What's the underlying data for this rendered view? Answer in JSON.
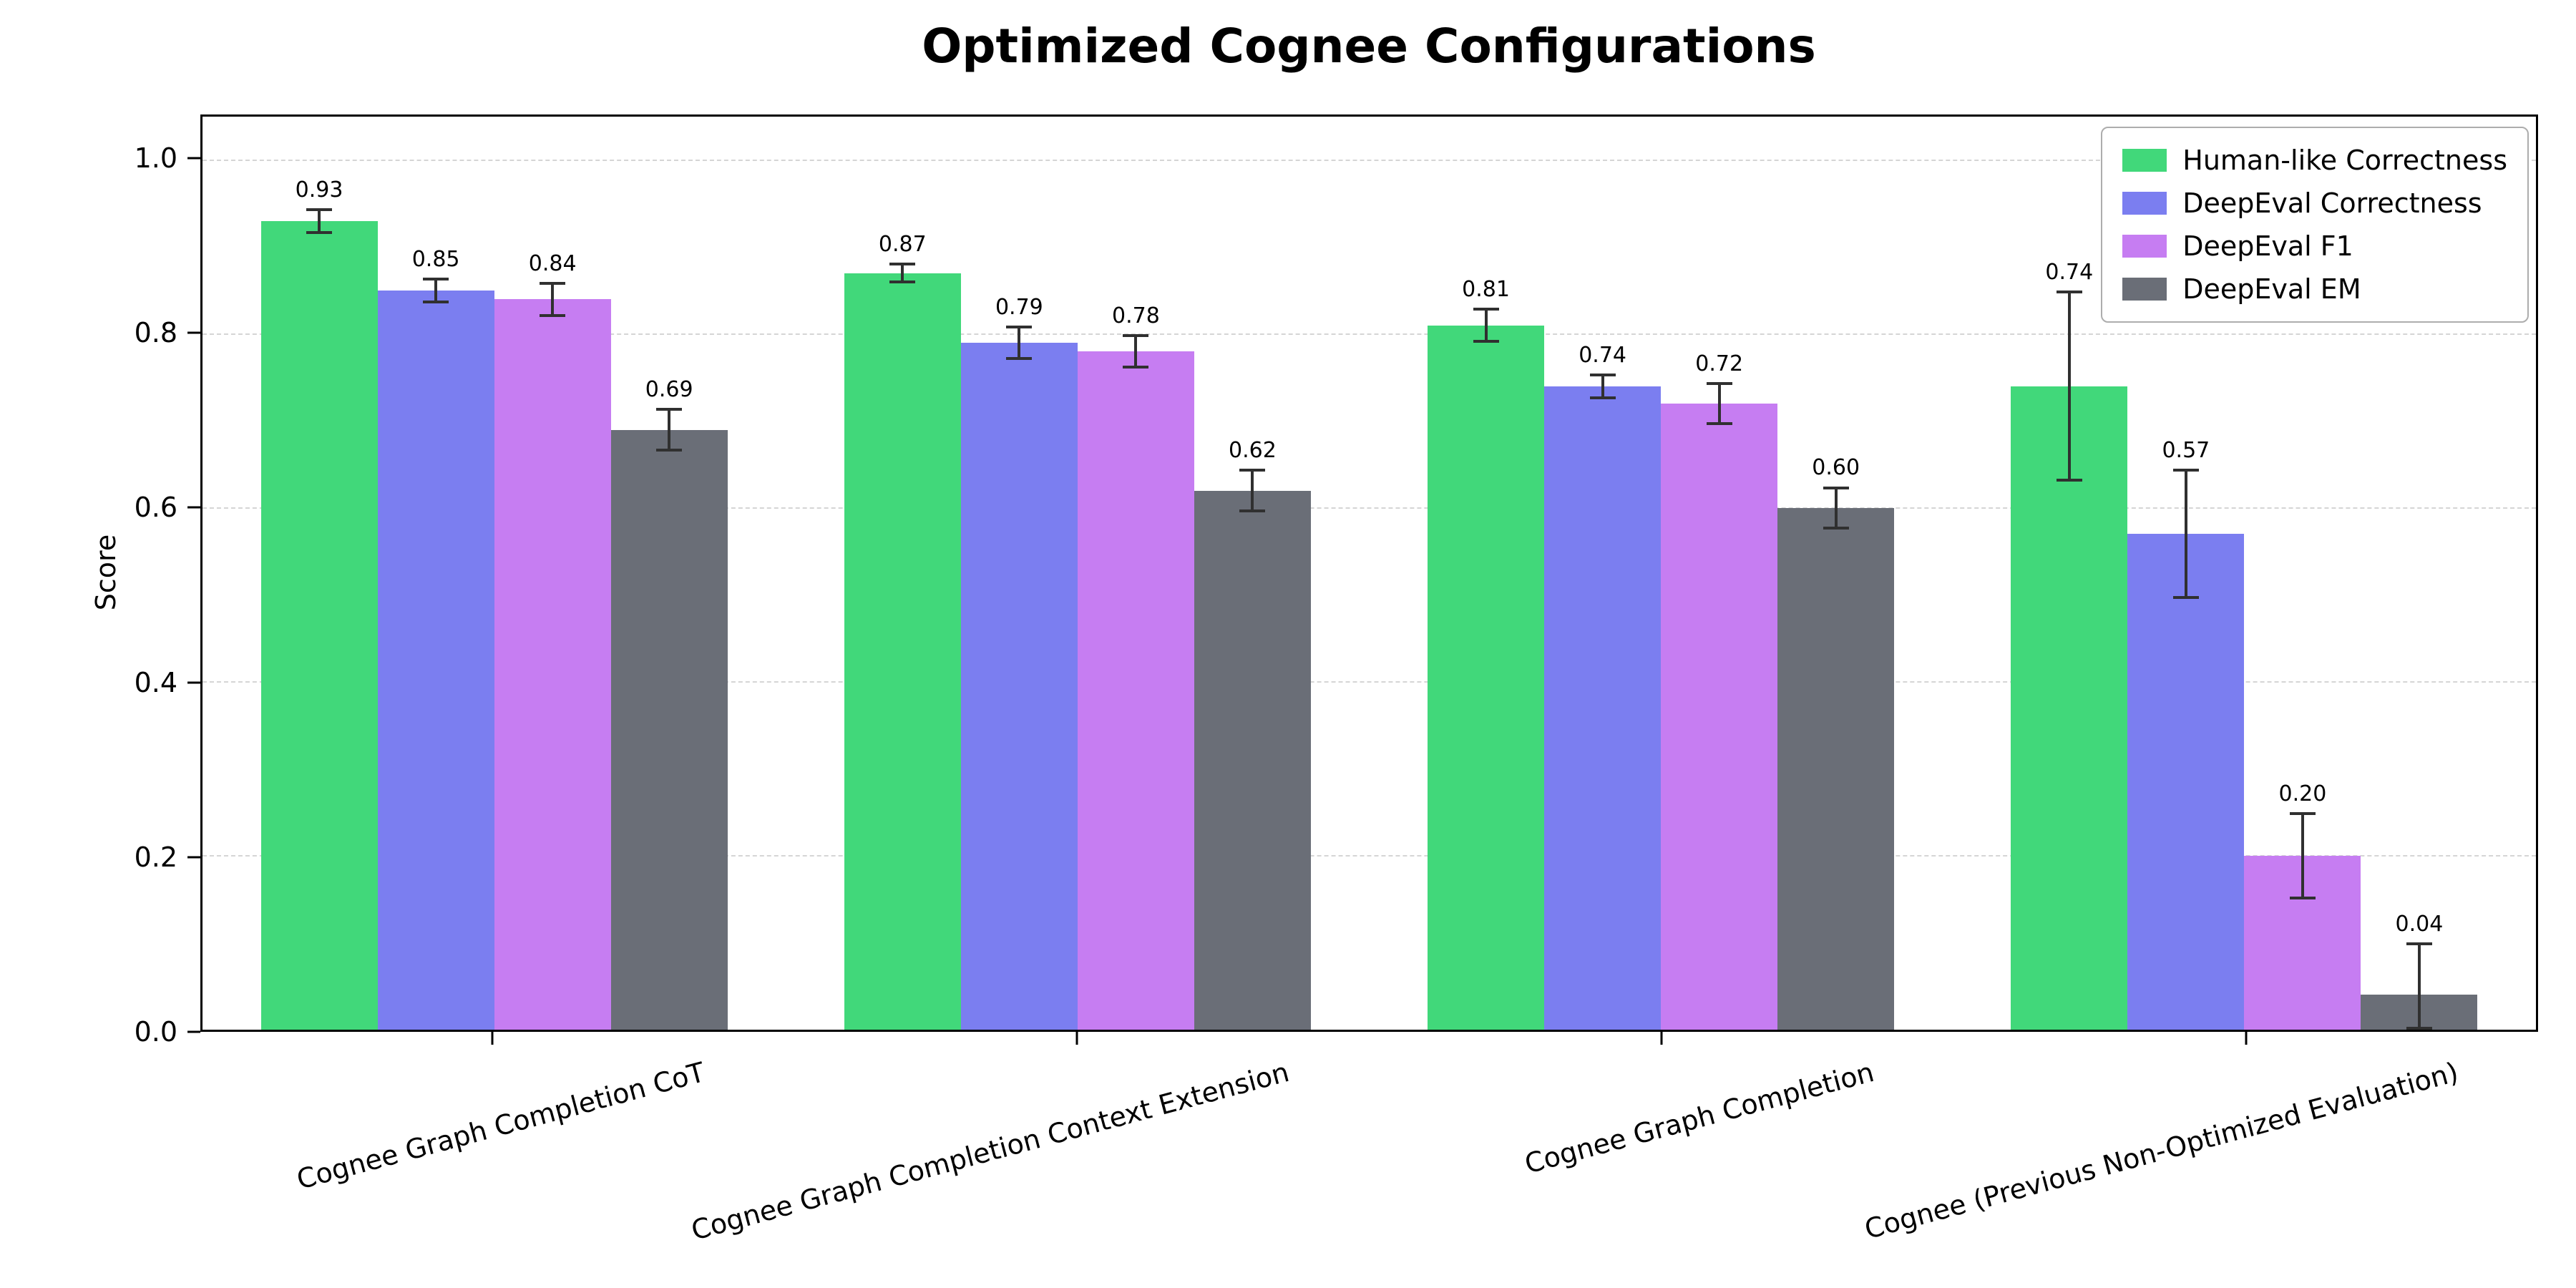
{
  "chart_data": {
    "type": "bar",
    "title": "Optimized Cognee Configurations",
    "ylabel": "Score",
    "ylim": [
      0,
      1.05
    ],
    "yticks": [
      0.0,
      0.2,
      0.4,
      0.6,
      0.8,
      1.0
    ],
    "grid": "dashed-horizontal",
    "legend_position": "upper-right",
    "errorbar_color": "#303030",
    "categories": [
      "Cognee Graph Completion CoT",
      "Cognee Graph Completion Context Extension",
      "Cognee Graph Completion",
      "Cognee (Previous Non-Optimized Evaluation)"
    ],
    "series": [
      {
        "name": "Human-like Correctness",
        "color": "#41d87a",
        "values": [
          0.93,
          0.87,
          0.81,
          0.74
        ],
        "errors": [
          0.015,
          0.012,
          0.02,
          0.11
        ]
      },
      {
        "name": "DeepEval Correctness",
        "color": "#7b7ef0",
        "values": [
          0.85,
          0.79,
          0.74,
          0.57
        ],
        "errors": [
          0.015,
          0.02,
          0.015,
          0.075
        ]
      },
      {
        "name": "DeepEval F1",
        "color": "#c67df2",
        "values": [
          0.84,
          0.78,
          0.72,
          0.2
        ],
        "errors": [
          0.02,
          0.02,
          0.025,
          0.05
        ]
      },
      {
        "name": "DeepEval EM",
        "color": "#6a6e77",
        "values": [
          0.69,
          0.62,
          0.6,
          0.04
        ],
        "errors": [
          0.025,
          0.025,
          0.025,
          0.06
        ]
      }
    ]
  }
}
